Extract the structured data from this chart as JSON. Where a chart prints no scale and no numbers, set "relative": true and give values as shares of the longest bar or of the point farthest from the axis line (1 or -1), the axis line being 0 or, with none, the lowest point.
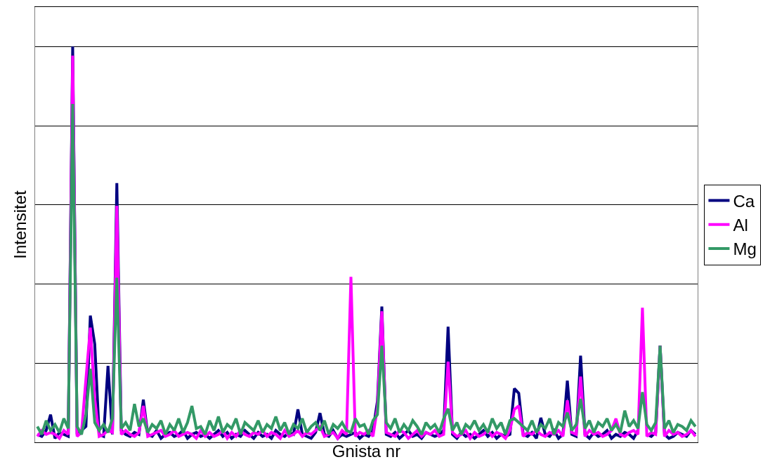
{
  "chart_data": {
    "type": "line",
    "xlabel": "Gnista nr",
    "ylabel": "Intensitet",
    "relative": true,
    "grid": "y",
    "legend": "right",
    "tick_labels": false,
    "marker": "none",
    "line_style": "solid",
    "categories": [
      null,
      null,
      null,
      null,
      null,
      null,
      null,
      null,
      null,
      null,
      null,
      null,
      null,
      null,
      null,
      null,
      null,
      null,
      null,
      null,
      null,
      null,
      null,
      null,
      null,
      null,
      null,
      null,
      null,
      null,
      null,
      null,
      null,
      null,
      null,
      null,
      null,
      null,
      null,
      null,
      null,
      null,
      null,
      null,
      null,
      null,
      null,
      null,
      null,
      null,
      null,
      null,
      null,
      null,
      null,
      null,
      null,
      null,
      null,
      null,
      null,
      null,
      null,
      null,
      null,
      null,
      null,
      null,
      null,
      null,
      null,
      null,
      null,
      null,
      null,
      null,
      null,
      null,
      null,
      null,
      null,
      null,
      null,
      null,
      null,
      null,
      null,
      null,
      null,
      null,
      null,
      null,
      null,
      null,
      null,
      null,
      null,
      null,
      null,
      null,
      null,
      null,
      null,
      null,
      null,
      null,
      null,
      null,
      null,
      null,
      null,
      null,
      null,
      null,
      null,
      null,
      null,
      null,
      null,
      null,
      null,
      null,
      null,
      null,
      null,
      null,
      null,
      null,
      null,
      null,
      null,
      null,
      null,
      null,
      null,
      null,
      null,
      null,
      null,
      null,
      null,
      null,
      null,
      null,
      null,
      null,
      null,
      null,
      null,
      null
    ],
    "series": [
      {
        "name": "Ca",
        "color": "#000080",
        "values": [
          0.02,
          0.015,
          0.03,
          0.07,
          0.01,
          0.025,
          0.02,
          0.015,
          1.0,
          0.02,
          0.03,
          0.04,
          0.32,
          0.248,
          0.02,
          0.015,
          0.193,
          0.02,
          0.655,
          0.03,
          0.02,
          0.015,
          0.025,
          0.02,
          0.108,
          0.02,
          0.015,
          0.03,
          0.01,
          0.02,
          0.025,
          0.015,
          0.02,
          0.03,
          0.01,
          0.02,
          0.025,
          0.015,
          0.02,
          0.01,
          0.02,
          0.03,
          0.015,
          0.025,
          0.01,
          0.02,
          0.015,
          0.03,
          0.02,
          0.01,
          0.025,
          0.015,
          0.02,
          0.01,
          0.03,
          0.02,
          0.015,
          0.025,
          0.02,
          0.083,
          0.02,
          0.015,
          0.01,
          0.025,
          0.074,
          0.02,
          0.015,
          0.03,
          0.01,
          0.02,
          0.015,
          0.02,
          0.025,
          0.01,
          0.02,
          0.015,
          0.03,
          0.104,
          0.343,
          0.02,
          0.015,
          0.025,
          0.01,
          0.02,
          0.03,
          0.015,
          0.02,
          0.01,
          0.025,
          0.02,
          0.015,
          0.02,
          0.03,
          0.292,
          0.02,
          0.01,
          0.025,
          0.015,
          0.02,
          0.01,
          0.02,
          0.03,
          0.015,
          0.025,
          0.01,
          0.02,
          0.015,
          0.02,
          0.136,
          0.124,
          0.02,
          0.015,
          0.025,
          0.01,
          0.062,
          0.02,
          0.015,
          0.03,
          0.01,
          0.02,
          0.156,
          0.02,
          0.015,
          0.219,
          0.02,
          0.01,
          0.025,
          0.015,
          0.02,
          0.03,
          0.01,
          0.02,
          0.015,
          0.025,
          0.02,
          0.01,
          0.03,
          null,
          0.02,
          0.015,
          0.025,
          0.244,
          0.02,
          0.01,
          0.015,
          0.025,
          0.02,
          0.015,
          0.03,
          0.02
        ]
      },
      {
        "name": "Al",
        "color": "#ff00ff",
        "values": [
          0.015,
          0.03,
          0.02,
          0.025,
          0.02,
          0.01,
          0.03,
          0.02,
          0.977,
          0.015,
          0.025,
          0.16,
          0.29,
          0.11,
          0.015,
          0.02,
          0.03,
          0.025,
          0.598,
          0.02,
          0.03,
          0.02,
          0.015,
          0.025,
          0.092,
          0.015,
          0.02,
          0.025,
          0.03,
          0.015,
          0.02,
          0.03,
          0.015,
          0.02,
          0.025,
          0.02,
          0.01,
          0.03,
          0.015,
          0.025,
          0.015,
          0.02,
          0.03,
          0.01,
          0.025,
          0.015,
          0.03,
          0.02,
          0.015,
          0.025,
          0.02,
          0.03,
          0.015,
          0.025,
          0.02,
          0.01,
          0.03,
          0.015,
          0.02,
          0.03,
          0.015,
          0.025,
          0.02,
          0.03,
          0.04,
          0.015,
          0.02,
          0.025,
          0.01,
          0.03,
          0.02,
          0.418,
          0.015,
          0.025,
          0.02,
          0.03,
          0.015,
          0.088,
          0.331,
          0.025,
          0.02,
          0.015,
          0.03,
          0.025,
          0.01,
          0.02,
          0.03,
          0.015,
          0.025,
          0.02,
          0.03,
          0.015,
          0.02,
          0.204,
          0.025,
          0.015,
          0.02,
          0.03,
          0.01,
          0.025,
          0.015,
          0.02,
          0.03,
          0.015,
          0.025,
          0.02,
          0.01,
          0.03,
          0.083,
          0.092,
          0.015,
          0.025,
          0.02,
          0.03,
          0.02,
          0.015,
          0.025,
          0.02,
          0.03,
          0.015,
          0.106,
          0.025,
          0.02,
          0.166,
          0.015,
          0.03,
          0.02,
          0.025,
          0.015,
          0.02,
          0.03,
          0.06,
          0.02,
          0.015,
          0.025,
          0.03,
          0.02,
          0.34,
          0.015,
          0.025,
          0.02,
          0.244,
          0.015,
          0.03,
          0.02,
          0.025,
          0.015,
          0.02,
          0.03,
          0.015
        ]
      },
      {
        "name": "Mg",
        "color": "#339966",
        "values": [
          0.04,
          0.02,
          0.055,
          0.03,
          0.045,
          0.025,
          0.06,
          0.035,
          0.855,
          0.04,
          0.02,
          0.07,
          0.186,
          0.05,
          0.03,
          0.045,
          0.025,
          0.06,
          0.416,
          0.035,
          0.05,
          0.03,
          0.097,
          0.04,
          0.06,
          0.025,
          0.045,
          0.035,
          0.055,
          0.02,
          0.045,
          0.03,
          0.06,
          0.025,
          0.05,
          0.092,
          0.035,
          0.04,
          0.02,
          0.055,
          0.03,
          0.065,
          0.025,
          0.045,
          0.035,
          0.06,
          0.02,
          0.05,
          0.04,
          0.03,
          0.055,
          0.025,
          0.045,
          0.035,
          0.065,
          0.03,
          0.05,
          0.02,
          0.045,
          0.035,
          0.06,
          0.025,
          0.04,
          0.05,
          0.03,
          0.055,
          0.02,
          0.045,
          0.035,
          0.05,
          0.03,
          0.025,
          0.06,
          0.04,
          0.045,
          0.02,
          0.055,
          0.07,
          0.244,
          0.05,
          0.035,
          0.06,
          0.025,
          0.045,
          0.03,
          0.055,
          0.04,
          0.02,
          0.05,
          0.035,
          0.045,
          0.025,
          0.06,
          0.085,
          0.03,
          0.05,
          0.02,
          0.045,
          0.035,
          0.055,
          0.03,
          0.045,
          0.025,
          0.06,
          0.035,
          0.05,
          0.02,
          0.055,
          0.06,
          0.05,
          0.04,
          0.03,
          0.055,
          0.025,
          0.045,
          0.035,
          0.06,
          0.02,
          0.05,
          0.04,
          0.075,
          0.03,
          0.045,
          0.11,
          0.035,
          0.055,
          0.025,
          0.05,
          0.04,
          0.06,
          0.03,
          0.045,
          0.025,
          0.08,
          0.04,
          0.055,
          0.035,
          0.127,
          0.045,
          0.03,
          0.05,
          0.244,
          0.035,
          0.055,
          0.025,
          0.045,
          0.04,
          0.03,
          0.055,
          0.04
        ]
      }
    ]
  }
}
